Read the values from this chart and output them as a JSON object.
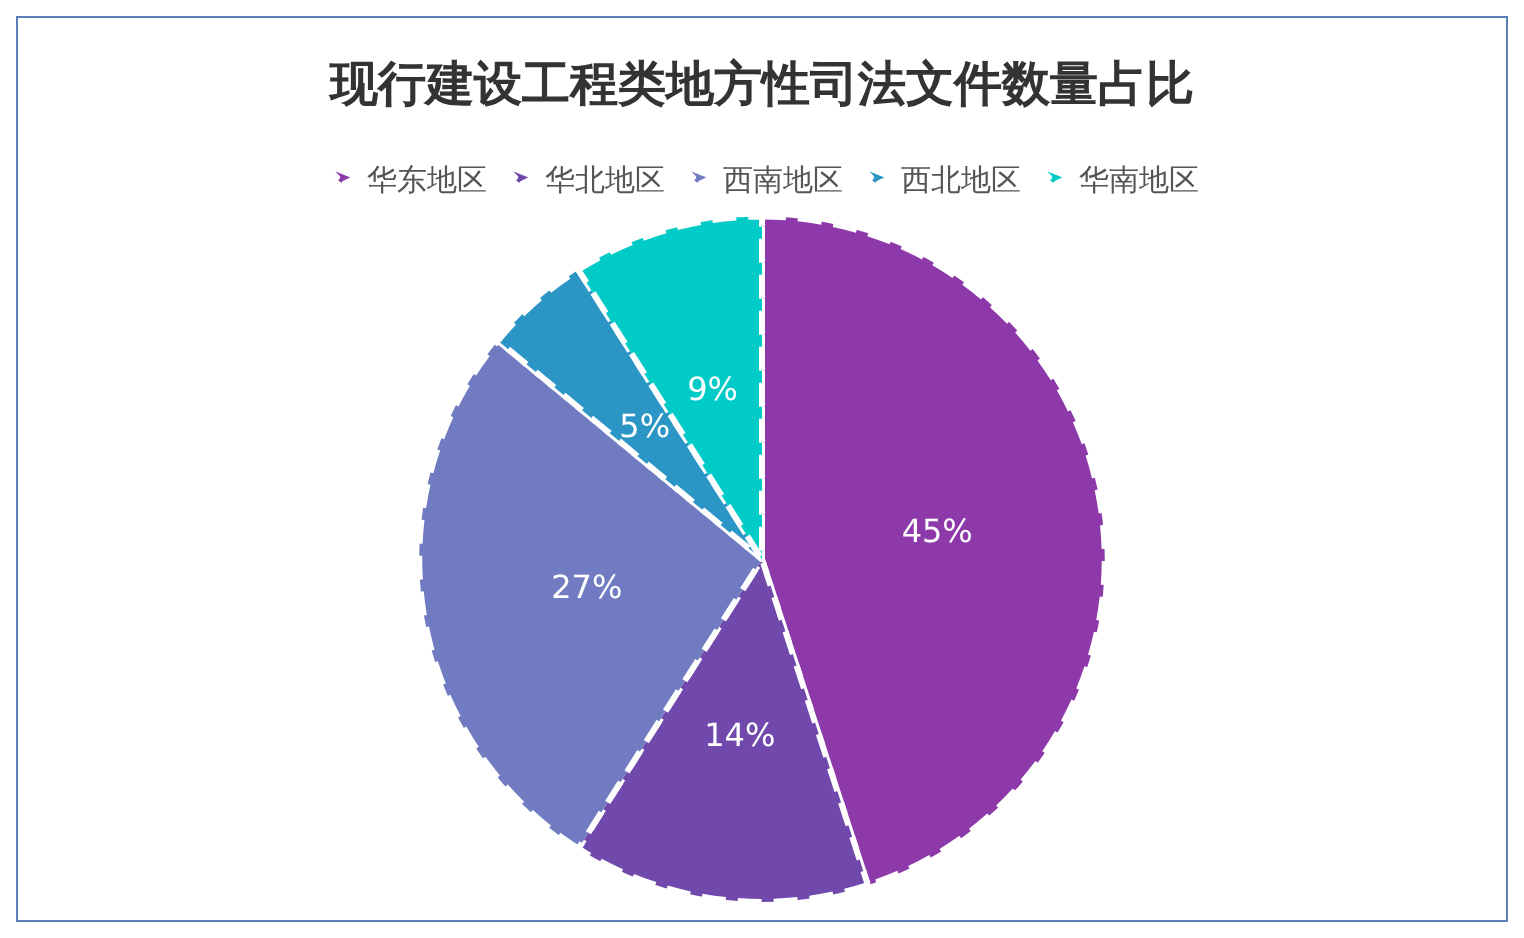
{
  "chart_data": {
    "type": "pie",
    "title": "现行建设工程类地方性司法文件数量占比",
    "categories": [
      "华东地区",
      "华北地区",
      "西南地区",
      "西北地区",
      "华南地区"
    ],
    "values": [
      45,
      14,
      27,
      5,
      9
    ],
    "colors": [
      "#8e39aa",
      "#7149ad",
      "#717bc1",
      "#2b95c5",
      "#00cbc6"
    ],
    "value_labels": [
      "45%",
      "14%",
      "27%",
      "5%",
      "9%"
    ],
    "legend": "top"
  }
}
